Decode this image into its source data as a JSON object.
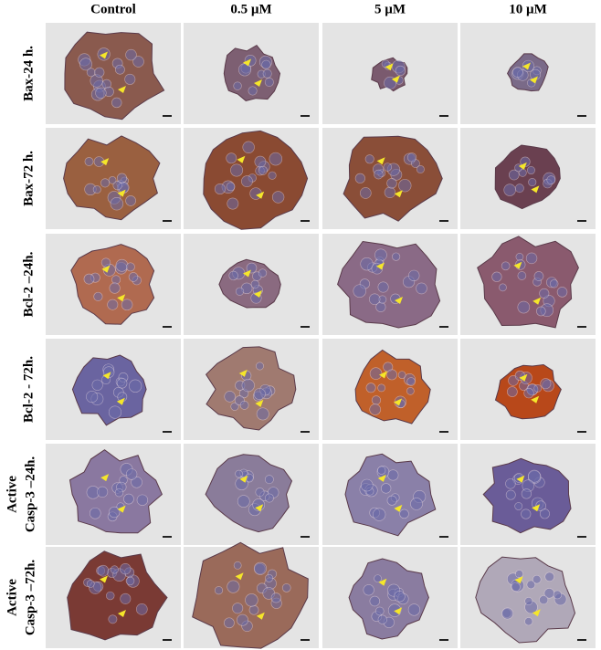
{
  "columns": [
    "Control",
    "0.5 µM",
    "5 µM",
    "10 µM"
  ],
  "rows": [
    {
      "label": [
        "Bax-24 h."
      ]
    },
    {
      "label": [
        "Bax-72 h."
      ]
    },
    {
      "label": [
        "Bcl-2 –24h."
      ]
    },
    {
      "label": [
        "Bcl-2 - 72h."
      ]
    },
    {
      "label": [
        "Active",
        "Casp-3 –24h."
      ]
    },
    {
      "label": [
        "Active",
        "Casp-3 –72h."
      ]
    }
  ]
}
